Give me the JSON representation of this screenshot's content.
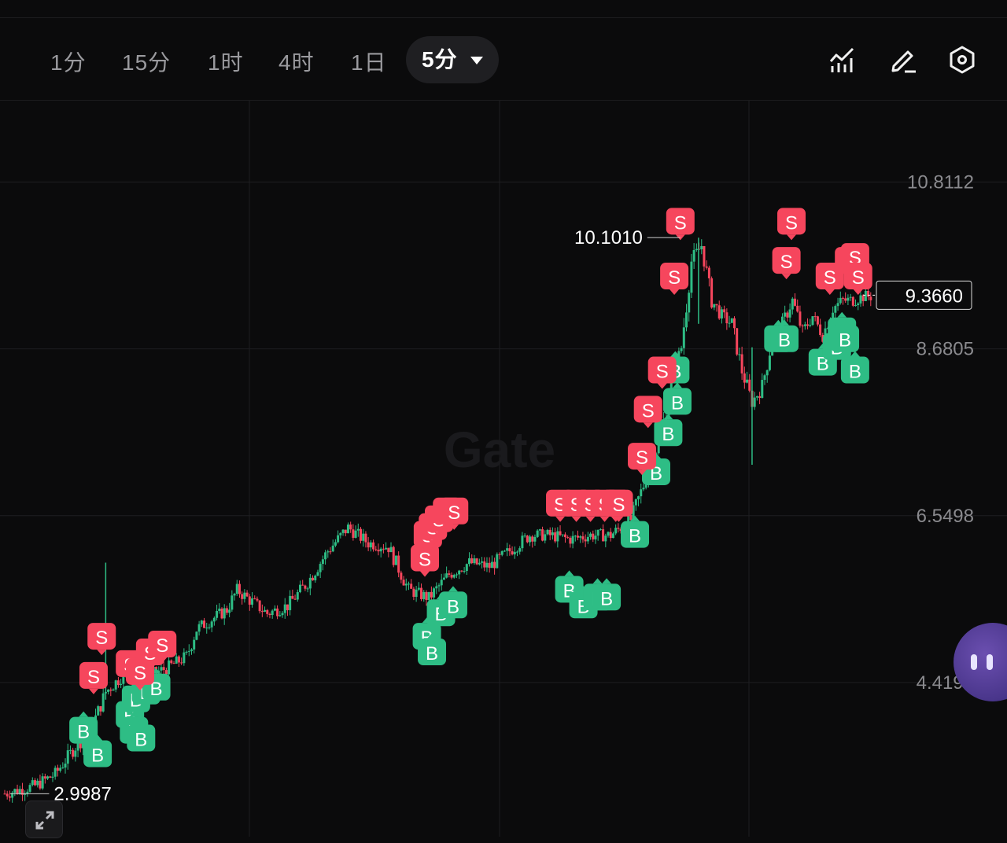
{
  "toolbar": {
    "tabs": [
      "1分",
      "15分",
      "1时",
      "4时",
      "1日"
    ],
    "active_tab": "5分",
    "icons": [
      "indicator-icon",
      "draw-icon",
      "settings-hex-icon"
    ]
  },
  "watermark": "Gate",
  "colors": {
    "up": "#2ebd85",
    "down": "#f6465d",
    "grid": "#1e1e21",
    "axis_text": "#8a8a8e",
    "bg": "#0b0b0c"
  },
  "chart_data": {
    "type": "candlestick",
    "y_ticks": [
      "10.8112",
      "8.6805",
      "6.5498",
      "4.4191"
    ],
    "ylim": [
      2.45,
      11.85
    ],
    "current_price": "9.3660",
    "high_label": "10.1010",
    "low_label": "2.9987",
    "trend": [
      [
        0,
        3.0
      ],
      [
        3,
        3.1
      ],
      [
        5,
        3.25
      ],
      [
        7,
        3.6
      ],
      [
        8.5,
        3.8
      ],
      [
        10,
        4.3
      ],
      [
        12,
        4.55
      ],
      [
        14,
        4.5
      ],
      [
        16,
        4.6
      ],
      [
        18,
        4.75
      ],
      [
        19,
        5.1
      ],
      [
        22,
        5.35
      ],
      [
        23,
        5.6
      ],
      [
        24,
        5.5
      ],
      [
        26,
        5.3
      ],
      [
        28,
        5.4
      ],
      [
        30,
        5.7
      ],
      [
        32,
        6.1
      ],
      [
        34,
        6.4
      ],
      [
        36,
        6.2
      ],
      [
        38,
        6.15
      ],
      [
        40,
        5.6
      ],
      [
        42,
        5.5
      ],
      [
        44,
        5.8
      ],
      [
        46,
        5.95
      ],
      [
        48,
        5.9
      ],
      [
        50,
        6.1
      ],
      [
        52,
        6.3
      ],
      [
        54,
        6.3
      ],
      [
        56,
        6.25
      ],
      [
        58,
        6.3
      ],
      [
        60,
        6.3
      ],
      [
        62,
        6.5
      ],
      [
        64,
        7.2
      ],
      [
        65,
        7.6
      ],
      [
        66,
        8.2
      ],
      [
        67,
        8.7
      ],
      [
        68,
        9.8
      ],
      [
        69,
        10.0
      ],
      [
        70,
        9.3
      ],
      [
        71,
        9.1
      ],
      [
        72,
        9.0
      ],
      [
        73,
        8.4
      ],
      [
        74,
        8.0
      ],
      [
        75,
        8.2
      ],
      [
        76,
        8.8
      ],
      [
        77,
        9.0
      ],
      [
        78,
        9.3
      ],
      [
        79,
        8.9
      ],
      [
        80,
        9.1
      ],
      [
        81,
        8.85
      ],
      [
        82,
        9.2
      ],
      [
        83,
        9.3
      ],
      [
        84,
        9.3
      ],
      [
        85,
        9.35
      ]
    ],
    "markers": {
      "sell": [
        [
          9.6,
          5.0
        ],
        [
          8.8,
          4.5
        ],
        [
          12.4,
          4.65
        ],
        [
          13.4,
          4.55
        ],
        [
          14.4,
          4.8
        ],
        [
          15.6,
          4.9
        ],
        [
          41.6,
          6.0
        ],
        [
          41.9,
          6.3
        ],
        [
          42.4,
          6.4
        ],
        [
          43.0,
          6.5
        ],
        [
          43.8,
          6.6
        ],
        [
          44.5,
          6.6
        ],
        [
          55.0,
          6.7
        ],
        [
          56.6,
          6.7
        ],
        [
          58.0,
          6.7
        ],
        [
          59.4,
          6.7
        ],
        [
          60.5,
          6.7
        ],
        [
          60.8,
          6.7
        ],
        [
          63.1,
          7.3
        ],
        [
          63.7,
          7.9
        ],
        [
          65.1,
          8.4
        ],
        [
          66.3,
          9.6
        ],
        [
          66.9,
          10.3
        ],
        [
          77.4,
          9.8
        ],
        [
          77.9,
          10.3
        ],
        [
          81.7,
          9.6
        ],
        [
          83.6,
          9.8
        ],
        [
          84.2,
          9.85
        ],
        [
          84.5,
          9.6
        ]
      ],
      "buy": [
        [
          7.8,
          3.8
        ],
        [
          9.2,
          3.5
        ],
        [
          12.4,
          4.0
        ],
        [
          12.8,
          3.8
        ],
        [
          13.0,
          4.2
        ],
        [
          13.5,
          3.7
        ],
        [
          14.0,
          4.3
        ],
        [
          15.0,
          4.35
        ],
        [
          41.8,
          5.0
        ],
        [
          42.3,
          4.8
        ],
        [
          43.2,
          5.3
        ],
        [
          44.4,
          5.4
        ],
        [
          55.9,
          5.6
        ],
        [
          57.3,
          5.4
        ],
        [
          58.7,
          5.5
        ],
        [
          59.6,
          5.5
        ],
        [
          62.4,
          6.3
        ],
        [
          64.5,
          7.1
        ],
        [
          65.7,
          7.6
        ],
        [
          66.4,
          8.4
        ],
        [
          66.6,
          8.0
        ],
        [
          76.6,
          8.8
        ],
        [
          77.2,
          8.8
        ],
        [
          81.0,
          8.5
        ],
        [
          82.4,
          8.7
        ],
        [
          82.9,
          8.9
        ],
        [
          83.2,
          8.8
        ],
        [
          84.2,
          8.4
        ]
      ]
    },
    "grid_x": [
      317,
      635,
      952
    ]
  }
}
